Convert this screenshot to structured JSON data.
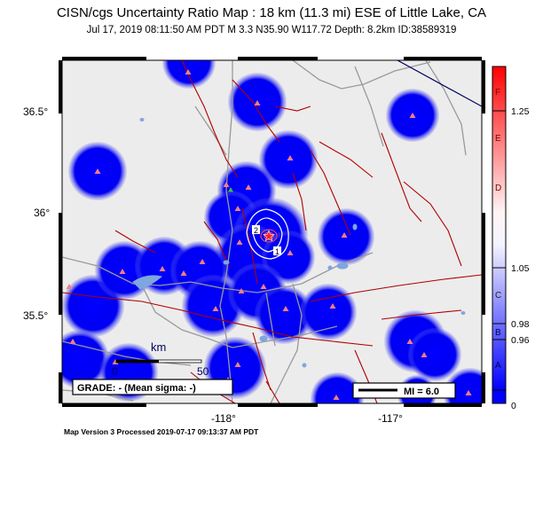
{
  "header": {
    "title": "CISN/cgs Uncertainty Ratio Map : 18 km (11.3 mi) ESE of Little Lake, CA",
    "subtitle": "Jul 17, 2019 08:11:50 AM PDT   M 3.3   N35.90 W117.72   Depth: 8.2km   ID:38589319"
  },
  "map": {
    "lat_ticks": [
      "36.5°",
      "36°",
      "35.5°"
    ],
    "lon_ticks": [
      "-118°",
      "-117°"
    ],
    "scale_bar": {
      "label": "km",
      "min": "0",
      "max": "50"
    },
    "grade_box": "GRADE: - (Mean sigma: -)",
    "mi_legend": "MI = 6.0",
    "contour_labels": [
      "2",
      "1"
    ],
    "colors": {
      "blob": "#0000ff",
      "land": "#ececec",
      "fault": "#b00000",
      "road": "#9a9a9a",
      "station": "#f08080"
    }
  },
  "colorbar": {
    "right_labels": [
      "1.25",
      "1.05",
      "0.98",
      "0.96",
      "0"
    ],
    "inner_labels": [
      "F",
      "E",
      "D",
      "C",
      "B",
      "A"
    ]
  },
  "footer": "Map Version 3 Processed 2019-07-17 09:13:37 AM PDT"
}
